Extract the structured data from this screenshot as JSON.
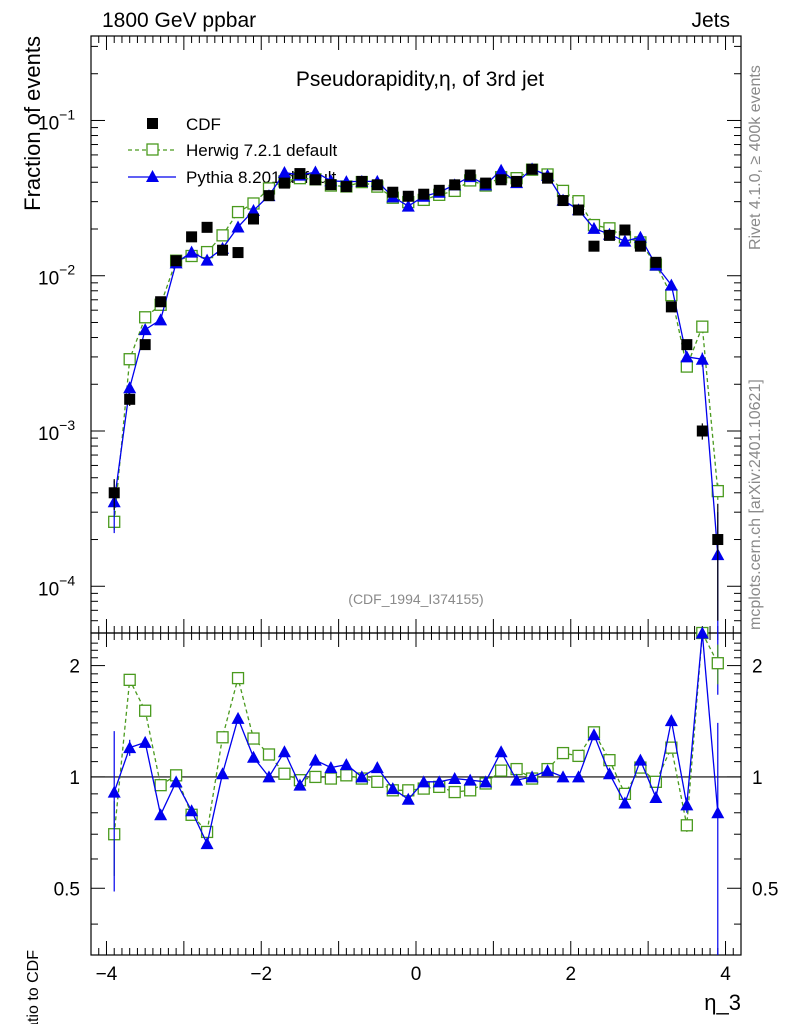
{
  "header": {
    "energy_label": "1800 GeV ppbar",
    "category_label": "Jets"
  },
  "side_labels": {
    "rivet": "Rivet 4.1.0, ≥ 400k events",
    "mcplots": "mcplots.cern.ch [arXiv:2401.10621]"
  },
  "chart_data": [
    {
      "type": "line",
      "panel": "main",
      "title": "Pseudorapidity,η, of 3rd jet",
      "watermark": "(CDF_1994_I374155)",
      "xlabel": "η_3",
      "ylabel": "Fraction of events",
      "yscale": "log",
      "xlim": [
        -4.2,
        4.2
      ],
      "ylim": [
        5e-05,
        0.35
      ],
      "yticks": [
        {
          "value": 0.0001,
          "base": "10",
          "exp": "−4"
        },
        {
          "value": 0.001,
          "base": "10",
          "exp": "−3"
        },
        {
          "value": 0.01,
          "base": "10",
          "exp": "−2"
        },
        {
          "value": 0.1,
          "base": "10",
          "exp": "−1"
        }
      ],
      "x": [
        -3.9,
        -3.7,
        -3.5,
        -3.3,
        -3.1,
        -2.9,
        -2.7,
        -2.5,
        -2.3,
        -2.1,
        -1.9,
        -1.7,
        -1.5,
        -1.3,
        -1.1,
        -0.9,
        -0.7,
        -0.5,
        -0.3,
        -0.1,
        0.1,
        0.3,
        0.5,
        0.7,
        0.9,
        1.1,
        1.3,
        1.5,
        1.7,
        1.9,
        2.1,
        2.3,
        2.5,
        2.7,
        2.9,
        3.1,
        3.3,
        3.5,
        3.7,
        3.9
      ],
      "series": [
        {
          "name": "CDF",
          "style": "data",
          "color": "#000000",
          "values": [
            0.0004,
            0.0016,
            0.0036,
            0.0068,
            0.0125,
            0.0178,
            0.0205,
            0.0146,
            0.0141,
            0.0232,
            0.0328,
            0.0395,
            0.0455,
            0.0415,
            0.0386,
            0.0375,
            0.0405,
            0.0385,
            0.0345,
            0.0325,
            0.0335,
            0.0355,
            0.0385,
            0.0445,
            0.0395,
            0.0415,
            0.0405,
            0.0485,
            0.0425,
            0.0305,
            0.0265,
            0.0155,
            0.0182,
            0.0197,
            0.0155,
            0.0122,
            0.0063,
            0.0036,
            0.001,
            0.0002
          ],
          "errors": [
            9e-05,
            0.00015,
            0.0002,
            0.0003,
            0.0004,
            0.0005,
            0.0006,
            0.0005,
            0.0005,
            0.0006,
            0.0008,
            0.0009,
            0.001,
            0.0009,
            0.0009,
            0.0009,
            0.0009,
            0.0009,
            0.0008,
            0.0008,
            0.0008,
            0.0008,
            0.0009,
            0.001,
            0.0009,
            0.0009,
            0.0009,
            0.001,
            0.0009,
            0.0008,
            0.0007,
            0.0005,
            0.0006,
            0.0006,
            0.0005,
            0.0004,
            0.0003,
            0.0002,
            0.00012,
            0.00014
          ]
        },
        {
          "name": "Herwig 7.2.1 default",
          "style": "open-square-dashed",
          "color": "#4a9a1e",
          "values": [
            0.00026,
            0.0029,
            0.0054,
            0.0065,
            0.0125,
            0.0134,
            0.0142,
            0.0182,
            0.0257,
            0.0292,
            0.0365,
            0.0405,
            0.0425,
            0.0418,
            0.0381,
            0.0376,
            0.0401,
            0.0375,
            0.0318,
            0.0298,
            0.0308,
            0.0332,
            0.0352,
            0.0411,
            0.0381,
            0.0431,
            0.0425,
            0.0482,
            0.0449,
            0.0352,
            0.0302,
            0.0212,
            0.0202,
            0.0177,
            0.0164,
            0.0118,
            0.0075,
            0.0026,
            0.0047,
            0.00041
          ],
          "errors": [
            3e-05,
            0.0001,
            0.0001,
            0.0001,
            0.0002,
            0.0002,
            0.0002,
            0.0002,
            0.0003,
            0.0003,
            0.0003,
            0.0003,
            0.0003,
            0.0003,
            0.0003,
            0.0003,
            0.0003,
            0.0003,
            0.0003,
            0.0003,
            0.0003,
            0.0003,
            0.0003,
            0.0003,
            0.0003,
            0.0003,
            0.0003,
            0.0003,
            0.0003,
            0.0003,
            0.0003,
            0.0002,
            0.0002,
            0.0002,
            0.0002,
            0.0002,
            0.0001,
            0.0001,
            0.0002,
            5e-05
          ]
        },
        {
          "name": "Pythia 8.201 default",
          "style": "filled-triangle-solid",
          "color": "#0000ee",
          "values": [
            0.00035,
            0.0019,
            0.0045,
            0.0052,
            0.0121,
            0.0142,
            0.0126,
            0.015,
            0.0206,
            0.0263,
            0.0328,
            0.0462,
            0.0445,
            0.0466,
            0.0409,
            0.0404,
            0.0405,
            0.0405,
            0.0322,
            0.0281,
            0.0325,
            0.0345,
            0.0385,
            0.0435,
            0.0385,
            0.0478,
            0.0398,
            0.0488,
            0.0443,
            0.0307,
            0.0266,
            0.0202,
            0.0185,
            0.0167,
            0.0177,
            0.0117,
            0.0087,
            0.003,
            0.0029,
            0.00016
          ],
          "errors": [
            0.00013,
            9e-05,
            0.0001,
            0.0001,
            0.0002,
            0.0002,
            0.0002,
            0.0002,
            0.0003,
            0.0003,
            0.0003,
            0.0003,
            0.0003,
            0.0003,
            0.0003,
            0.0003,
            0.0003,
            0.0003,
            0.0003,
            0.0003,
            0.0003,
            0.0003,
            0.0003,
            0.0003,
            0.0003,
            0.0003,
            0.0003,
            0.0003,
            0.0003,
            0.0003,
            0.0003,
            0.0002,
            0.0002,
            0.0002,
            0.0002,
            0.0002,
            0.0001,
            0.0001,
            0.0003,
            0.00014
          ]
        }
      ],
      "legend": "top-left"
    },
    {
      "type": "line",
      "panel": "ratio",
      "ylabel": "Ratio to CDF",
      "xlabel": "η_3",
      "yscale": "log",
      "xlim": [
        -4.2,
        4.2
      ],
      "ylim": [
        0.33,
        2.45
      ],
      "yticks": [
        {
          "value": 0.5,
          "label": "0.5"
        },
        {
          "value": 1,
          "label": "1"
        },
        {
          "value": 2,
          "label": "2"
        }
      ],
      "xticks": [
        {
          "value": -4,
          "label": "−4"
        },
        {
          "value": -2,
          "label": "−2"
        },
        {
          "value": 0,
          "label": "0"
        },
        {
          "value": 2,
          "label": "2"
        },
        {
          "value": 4,
          "label": "4"
        }
      ],
      "x": [
        -3.9,
        -3.7,
        -3.5,
        -3.3,
        -3.1,
        -2.9,
        -2.7,
        -2.5,
        -2.3,
        -2.1,
        -1.9,
        -1.7,
        -1.5,
        -1.3,
        -1.1,
        -0.9,
        -0.7,
        -0.5,
        -0.3,
        -0.1,
        0.1,
        0.3,
        0.5,
        0.7,
        0.9,
        1.1,
        1.3,
        1.5,
        1.7,
        1.9,
        2.1,
        2.3,
        2.5,
        2.7,
        2.9,
        3.1,
        3.3,
        3.5,
        3.7,
        3.9
      ],
      "series": [
        {
          "name": "Herwig 7.2.1 default",
          "style": "open-square-dashed",
          "color": "#4a9a1e",
          "values": [
            0.7,
            1.83,
            1.51,
            0.95,
            1.01,
            0.79,
            0.71,
            1.28,
            1.85,
            1.27,
            1.15,
            1.02,
            0.98,
            1.0,
            0.99,
            1.01,
            0.99,
            0.97,
            0.92,
            0.92,
            0.93,
            0.94,
            0.91,
            0.92,
            0.96,
            1.04,
            1.05,
            0.99,
            1.05,
            1.16,
            1.14,
            1.32,
            1.11,
            0.9,
            1.06,
            0.97,
            1.2,
            0.74,
            2.85,
            2.03
          ],
          "errors": [
            0.16,
            0.05,
            0.03,
            0.02,
            0.02,
            0.02,
            0.02,
            0.02,
            0.02,
            0.02,
            0.01,
            0.01,
            0.01,
            0.01,
            0.01,
            0.01,
            0.01,
            0.01,
            0.01,
            0.01,
            0.01,
            0.01,
            0.01,
            0.01,
            0.01,
            0.01,
            0.01,
            0.01,
            0.01,
            0.01,
            0.01,
            0.02,
            0.02,
            0.02,
            0.02,
            0.02,
            0.02,
            0.03,
            0.15,
            0.25
          ]
        },
        {
          "name": "Pythia 8.201 default",
          "style": "filled-triangle-solid",
          "color": "#0000ee",
          "values": [
            0.91,
            1.2,
            1.24,
            0.79,
            0.97,
            0.81,
            0.66,
            1.02,
            1.44,
            1.13,
            1.0,
            1.17,
            0.95,
            1.11,
            1.06,
            1.08,
            1.0,
            1.06,
            0.93,
            0.87,
            0.97,
            0.97,
            0.99,
            0.98,
            0.97,
            1.17,
            0.98,
            1.0,
            1.04,
            1.0,
            1.0,
            1.3,
            1.02,
            0.85,
            1.11,
            0.88,
            1.42,
            0.84,
            2.65,
            0.8
          ],
          "errors": [
            0.42,
            0.06,
            0.04,
            0.02,
            0.02,
            0.02,
            0.02,
            0.02,
            0.02,
            0.02,
            0.01,
            0.01,
            0.01,
            0.01,
            0.01,
            0.01,
            0.01,
            0.01,
            0.01,
            0.01,
            0.01,
            0.01,
            0.01,
            0.01,
            0.01,
            0.01,
            0.01,
            0.01,
            0.01,
            0.01,
            0.01,
            0.02,
            0.02,
            0.02,
            0.02,
            0.02,
            0.02,
            0.04,
            0.2,
            0.6
          ]
        }
      ]
    }
  ]
}
